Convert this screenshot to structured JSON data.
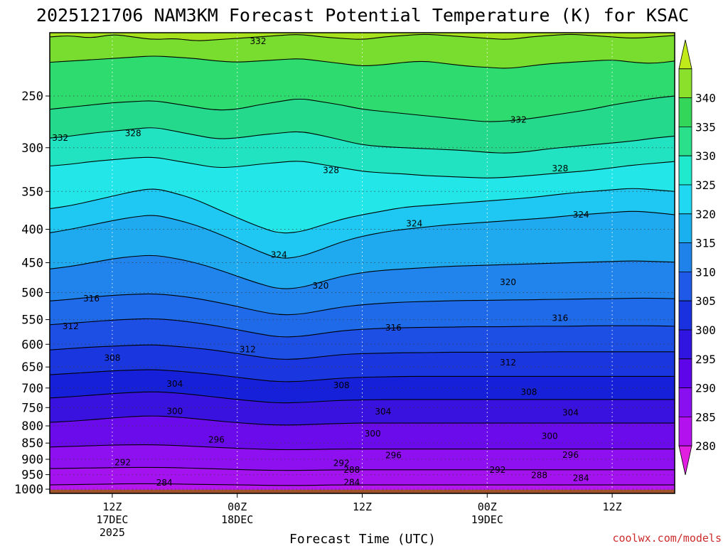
{
  "title": "2025121706 NAM3KM Forecast Potential Temperature (K) for KSAC",
  "credit": "coolwx.com/models",
  "chart_data": {
    "type": "heatmap",
    "title": "2025121706 NAM3KM Forecast Potential Temperature (K) for KSAC",
    "xlabel": "Forecast Time (UTC)",
    "ylabel": "",
    "x_range_hours": [
      0,
      60
    ],
    "x_ticks": [
      {
        "hour": 6,
        "lines": [
          "12Z",
          "17DEC",
          "2025"
        ]
      },
      {
        "hour": 18,
        "lines": [
          "00Z",
          "18DEC"
        ]
      },
      {
        "hour": 30,
        "lines": [
          "12Z"
        ]
      },
      {
        "hour": 42,
        "lines": [
          "00Z",
          "19DEC"
        ]
      },
      {
        "hour": 54,
        "lines": [
          "12Z"
        ]
      }
    ],
    "y_ticks": [
      "250",
      "300",
      "350",
      "400",
      "450",
      "500",
      "550",
      "600",
      "650",
      "700",
      "750",
      "800",
      "850",
      "900",
      "950",
      "1000"
    ],
    "y_tick_values": [
      250,
      300,
      350,
      400,
      450,
      500,
      550,
      600,
      650,
      700,
      750,
      800,
      850,
      900,
      950,
      1000
    ],
    "y_range_hpa": [
      200,
      1015
    ],
    "surface_hpa": 1002,
    "grid": "dotted",
    "colorbar": {
      "levels": [
        280,
        285,
        290,
        295,
        300,
        305,
        310,
        315,
        320,
        325,
        330,
        335,
        340
      ],
      "labels": [
        "280",
        "285",
        "290",
        "295",
        "300",
        "305",
        "310",
        "315",
        "320",
        "325",
        "330",
        "335",
        "340"
      ],
      "colors": [
        "#e11fe0",
        "#b411ef",
        "#8a0ff0",
        "#5e05ea",
        "#3014e0",
        "#1a31e0",
        "#1e5ae7",
        "#1f82ea",
        "#1ab0ef",
        "#20d8f2",
        "#20eacd",
        "#2be08a",
        "#34d65a",
        "#8ae02a",
        "#c0ea1a"
      ]
    },
    "series": [
      {
        "label": "332",
        "values": [
          203,
          202,
          204,
          201,
          203,
          205,
          204,
          206,
          205,
          204,
          203,
          202,
          201,
          203,
          204,
          205,
          203,
          202,
          201,
          202,
          203,
          204,
          205,
          203,
          202,
          201,
          202,
          203,
          204,
          203,
          202
        ]
      },
      {
        "label": "332",
        "values": [
          222,
          221,
          220,
          219,
          218,
          217,
          218,
          219,
          221,
          222,
          221,
          220,
          219,
          221,
          223,
          225,
          224,
          222,
          221,
          223,
          225,
          226,
          227,
          225,
          223,
          222,
          221,
          220,
          222,
          223,
          221
        ]
      },
      {
        "label": "332",
        "values": [
          262,
          260,
          258,
          256,
          255,
          254,
          257,
          260,
          263,
          262,
          258,
          255,
          252,
          255,
          258,
          262,
          264,
          266,
          268,
          270,
          272,
          274,
          273,
          271,
          268,
          265,
          262,
          258,
          255,
          252,
          250
        ]
      },
      {
        "label": "328",
        "values": [
          290,
          288,
          285,
          283,
          281,
          279,
          283,
          287,
          291,
          290,
          287,
          285,
          283,
          287,
          292,
          297,
          299,
          300,
          301,
          302,
          303,
          305,
          306,
          304,
          301,
          299,
          297,
          295,
          293,
          290,
          288
        ]
      },
      {
        "label": "328",
        "values": [
          320,
          318,
          315,
          313,
          311,
          310,
          314,
          318,
          322,
          321,
          318,
          316,
          314,
          318,
          322,
          326,
          328,
          329,
          331,
          332,
          333,
          334,
          333,
          331,
          329,
          327,
          325,
          322,
          319,
          317,
          315
        ]
      },
      {
        "label": "324",
        "values": [
          372,
          368,
          362,
          356,
          350,
          346,
          352,
          360,
          372,
          384,
          396,
          406,
          404,
          395,
          386,
          380,
          375,
          370,
          368,
          366,
          364,
          362,
          360,
          358,
          355,
          352,
          350,
          348,
          346,
          348,
          350
        ]
      },
      {
        "label": "324",
        "values": [
          405,
          400,
          394,
          388,
          383,
          380,
          386,
          394,
          405,
          418,
          432,
          444,
          441,
          430,
          418,
          410,
          404,
          400,
          397,
          394,
          392,
          390,
          388,
          386,
          384,
          381,
          379,
          377,
          375,
          377,
          380
        ]
      },
      {
        "label": "320",
        "values": [
          460,
          456,
          450,
          444,
          440,
          438,
          443,
          450,
          460,
          472,
          484,
          494,
          492,
          482,
          472,
          466,
          462,
          460,
          458,
          456,
          455,
          454,
          453,
          452,
          451,
          450,
          449,
          448,
          447,
          448,
          449
        ]
      },
      {
        "label": "316",
        "values": [
          515,
          512,
          508,
          505,
          503,
          502,
          505,
          510,
          517,
          525,
          534,
          541,
          540,
          533,
          526,
          522,
          519,
          517,
          516,
          515,
          514,
          514,
          513,
          513,
          512,
          512,
          511,
          511,
          510,
          510,
          511
        ]
      },
      {
        "label": "312",
        "values": [
          560,
          557,
          554,
          551,
          549,
          548,
          551,
          556,
          562,
          570,
          578,
          585,
          584,
          578,
          572,
          569,
          567,
          566,
          565,
          565,
          564,
          564,
          564,
          563,
          563,
          563,
          562,
          562,
          562,
          562,
          563
        ]
      },
      {
        "label": "308",
        "values": [
          612,
          609,
          606,
          604,
          602,
          601,
          604,
          608,
          613,
          620,
          627,
          633,
          632,
          627,
          622,
          620,
          619,
          618,
          618,
          617,
          617,
          617,
          617,
          617,
          616,
          616,
          616,
          616,
          616,
          616,
          616
        ]
      },
      {
        "label": "304",
        "values": [
          668,
          665,
          662,
          659,
          657,
          656,
          659,
          663,
          668,
          674,
          680,
          685,
          684,
          680,
          676,
          674,
          673,
          672,
          672,
          672,
          672,
          672,
          672,
          672,
          672,
          672,
          672,
          672,
          672,
          672,
          672
        ]
      },
      {
        "label": "300",
        "values": [
          725,
          722,
          718,
          714,
          711,
          709,
          712,
          717,
          723,
          729,
          734,
          738,
          737,
          734,
          731,
          730,
          729,
          729,
          729,
          729,
          729,
          729,
          729,
          729,
          729,
          729,
          729,
          729,
          729,
          729,
          729
        ]
      },
      {
        "label": "296",
        "values": [
          790,
          787,
          783,
          778,
          774,
          772,
          775,
          780,
          786,
          791,
          795,
          798,
          797,
          795,
          793,
          792,
          792,
          792,
          792,
          792,
          792,
          792,
          792,
          792,
          792,
          792,
          792,
          792,
          792,
          792,
          792
        ]
      },
      {
        "label": "292",
        "values": [
          862,
          860,
          858,
          856,
          855,
          855,
          857,
          860,
          863,
          866,
          868,
          870,
          870,
          869,
          868,
          868,
          868,
          868,
          868,
          868,
          868,
          868,
          868,
          868,
          868,
          868,
          868,
          868,
          868,
          868,
          868
        ]
      },
      {
        "label": "288",
        "values": [
          930,
          929,
          928,
          927,
          926,
          926,
          927,
          929,
          931,
          933,
          935,
          936,
          936,
          935,
          934,
          934,
          934,
          934,
          934,
          934,
          934,
          934,
          934,
          934,
          934,
          934,
          934,
          934,
          934,
          934,
          934
        ]
      },
      {
        "label": "284",
        "values": [
          985,
          984,
          983,
          982,
          981,
          981,
          982,
          983,
          984,
          985,
          986,
          987,
          987,
          986,
          985,
          985,
          985,
          985,
          985,
          985,
          985,
          985,
          985,
          985,
          985,
          985,
          985,
          985,
          985,
          985,
          985
        ]
      }
    ],
    "line_labels": [
      {
        "text": "332",
        "hour": 20,
        "hpa": 206
      },
      {
        "text": "332",
        "hour": 1,
        "hpa": 290
      },
      {
        "text": "328",
        "hour": 8,
        "hpa": 285
      },
      {
        "text": "328",
        "hour": 27,
        "hpa": 325
      },
      {
        "text": "328",
        "hour": 49,
        "hpa": 323
      },
      {
        "text": "332",
        "hour": 45,
        "hpa": 272
      },
      {
        "text": "324",
        "hour": 22,
        "hpa": 438
      },
      {
        "text": "324",
        "hour": 35,
        "hpa": 392
      },
      {
        "text": "324",
        "hour": 51,
        "hpa": 380
      },
      {
        "text": "320",
        "hour": 26,
        "hpa": 488
      },
      {
        "text": "320",
        "hour": 44,
        "hpa": 482
      },
      {
        "text": "316",
        "hour": 4,
        "hpa": 511
      },
      {
        "text": "316",
        "hour": 33,
        "hpa": 566
      },
      {
        "text": "316",
        "hour": 49,
        "hpa": 547
      },
      {
        "text": "312",
        "hour": 2,
        "hpa": 563
      },
      {
        "text": "312",
        "hour": 19,
        "hpa": 611
      },
      {
        "text": "312",
        "hour": 44,
        "hpa": 640
      },
      {
        "text": "308",
        "hour": 6,
        "hpa": 630
      },
      {
        "text": "308",
        "hour": 28,
        "hpa": 693
      },
      {
        "text": "308",
        "hour": 46,
        "hpa": 710
      },
      {
        "text": "304",
        "hour": 12,
        "hpa": 690
      },
      {
        "text": "304",
        "hour": 32,
        "hpa": 761
      },
      {
        "text": "304",
        "hour": 50,
        "hpa": 764
      },
      {
        "text": "300",
        "hour": 12,
        "hpa": 760
      },
      {
        "text": "300",
        "hour": 31,
        "hpa": 822
      },
      {
        "text": "300",
        "hour": 48,
        "hpa": 830
      },
      {
        "text": "296",
        "hour": 16,
        "hpa": 840
      },
      {
        "text": "296",
        "hour": 33,
        "hpa": 888
      },
      {
        "text": "296",
        "hour": 50,
        "hpa": 886
      },
      {
        "text": "292",
        "hour": 7,
        "hpa": 910
      },
      {
        "text": "292",
        "hour": 28,
        "hpa": 912
      },
      {
        "text": "292",
        "hour": 43,
        "hpa": 934
      },
      {
        "text": "288",
        "hour": 29,
        "hpa": 934
      },
      {
        "text": "288",
        "hour": 47,
        "hpa": 952
      },
      {
        "text": "284",
        "hour": 11,
        "hpa": 978
      },
      {
        "text": "284",
        "hour": 29,
        "hpa": 976
      },
      {
        "text": "284",
        "hour": 51,
        "hpa": 962
      }
    ]
  }
}
